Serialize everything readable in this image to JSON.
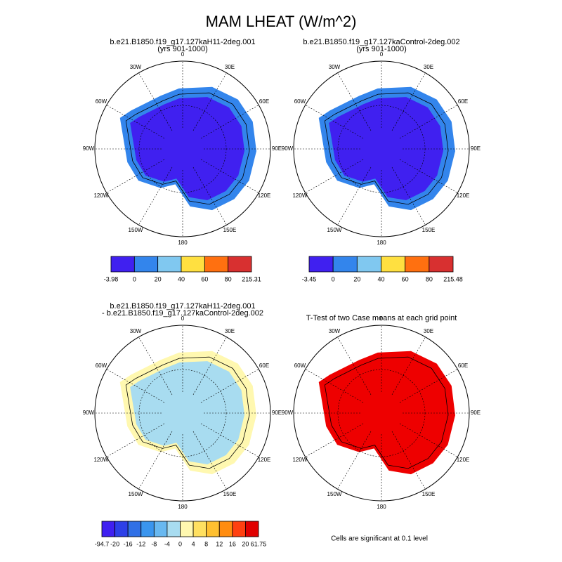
{
  "title": "MAM LHEAT (W/m^2)",
  "meridian_labels": [
    "0",
    "30E",
    "60E",
    "90E",
    "120E",
    "150E",
    "180",
    "150W",
    "120W",
    "90W",
    "60W",
    "30W"
  ],
  "panels": [
    {
      "title": [
        "b.e21.B1850.f19_g17.127kaH11-2deg.001",
        "(yrs 901-1000)"
      ],
      "colorbar": {
        "colors": [
          "#4020f0",
          "#3385ec",
          "#80c8f0",
          "#ffe040",
          "#ff7010",
          "#d83030"
        ],
        "labels": [
          "-3.98",
          "0",
          "20",
          "40",
          "60",
          "80",
          "215.31"
        ]
      }
    },
    {
      "title": [
        "b.e21.B1850.f19_g17.127kaControl-2deg.002",
        "(yrs 901-1000)"
      ],
      "colorbar": {
        "colors": [
          "#4020f0",
          "#3385ec",
          "#80c8f0",
          "#ffe040",
          "#ff7010",
          "#d83030"
        ],
        "labels": [
          "-3.45",
          "0",
          "20",
          "40",
          "60",
          "80",
          "215.48"
        ]
      }
    },
    {
      "title": [
        "b.e21.B1850.f19_g17.127kaH11-2deg.001",
        "- b.e21.B1850.f19_g17.127kaControl-2deg.002"
      ],
      "colorbar": {
        "colors": [
          "#4020f0",
          "#2d40e8",
          "#3070e6",
          "#3a95ee",
          "#68b8f0",
          "#a8dcf0",
          "#fff8b0",
          "#ffe060",
          "#ffc030",
          "#ff8c10",
          "#ff4010",
          "#e00000"
        ],
        "labels": [
          "-94.7",
          "-20",
          "-16",
          "-12",
          "-8",
          "-4",
          "0",
          "4",
          "8",
          "12",
          "16",
          "20",
          "61.75"
        ]
      }
    },
    {
      "title": [
        "T-Test of two Case means at each grid point"
      ]
    }
  ],
  "footnote": "Cells are significant at 0.1 level"
}
